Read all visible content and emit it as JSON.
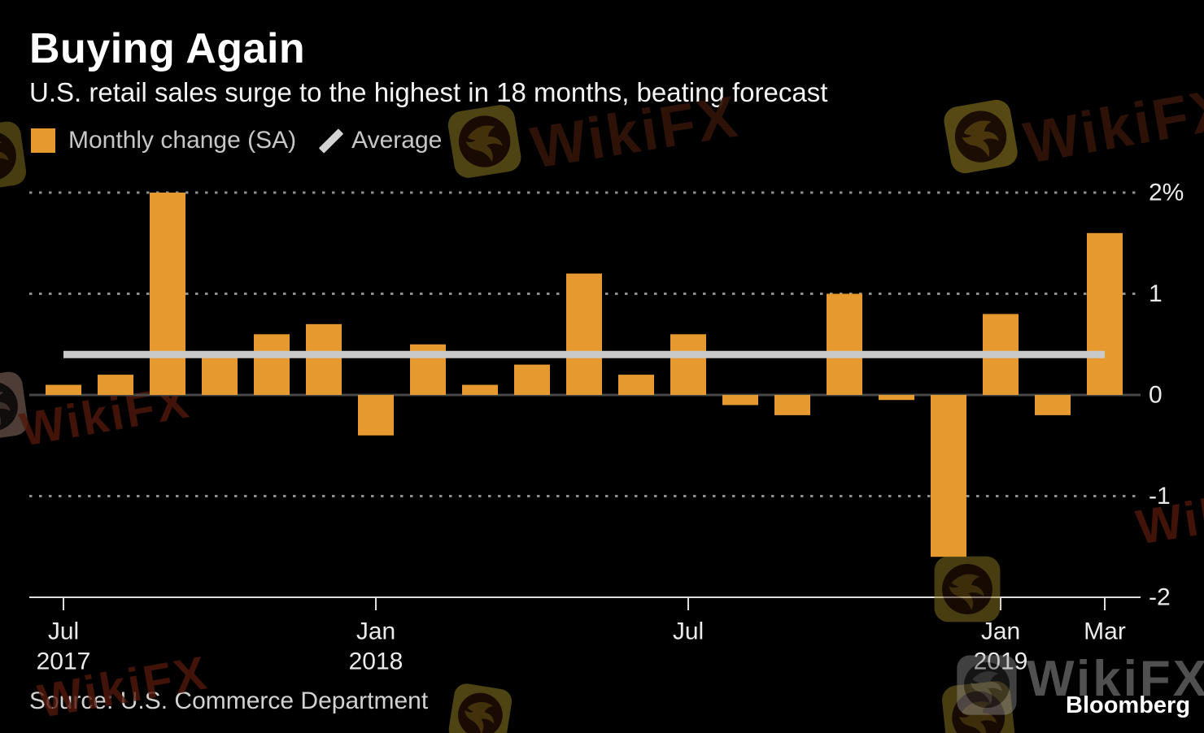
{
  "header": {
    "title": "Buying Again",
    "subtitle": "U.S. retail sales surge to the highest in 18 months, beating forecast"
  },
  "legend": {
    "bar_label": "Monthly change (SA)",
    "line_label": "Average",
    "bar_color": "#E6992E",
    "line_color": "#C9C9C9"
  },
  "chart_data": {
    "type": "bar",
    "title": "Buying Again",
    "categories": [
      "Jul 2017",
      "Aug 2017",
      "Sep 2017",
      "Oct 2017",
      "Nov 2017",
      "Dec 2017",
      "Jan 2018",
      "Feb 2018",
      "Mar 2018",
      "Apr 2018",
      "May 2018",
      "Jun 2018",
      "Jul 2018",
      "Aug 2018",
      "Sep 2018",
      "Oct 2018",
      "Nov 2018",
      "Dec 2018",
      "Jan 2019",
      "Feb 2019",
      "Mar 2019"
    ],
    "values": [
      0.1,
      0.2,
      2.0,
      0.4,
      0.6,
      0.7,
      -0.4,
      0.5,
      0.1,
      0.3,
      1.2,
      0.2,
      0.6,
      -0.1,
      -0.2,
      1.0,
      -0.05,
      -1.6,
      0.8,
      -0.2,
      1.6
    ],
    "series_name": "Monthly change (SA)",
    "average": 0.4,
    "average_name": "Average",
    "xlabel": "",
    "ylabel": "%",
    "ylim": [
      -2,
      2
    ],
    "grid": true,
    "legend_position": "top",
    "yticks": [
      {
        "value": 2,
        "label": "2%"
      },
      {
        "value": 1,
        "label": "1"
      },
      {
        "value": 0,
        "label": "0"
      },
      {
        "value": -1,
        "label": "-1"
      },
      {
        "value": -2,
        "label": "-2"
      }
    ],
    "xticks": [
      {
        "index": 0,
        "label": "Jul",
        "year": "2017"
      },
      {
        "index": 6,
        "label": "Jan",
        "year": "2018"
      },
      {
        "index": 12,
        "label": "Jul",
        "year": ""
      },
      {
        "index": 18,
        "label": "Jan",
        "year": "2019"
      },
      {
        "index": 20,
        "label": "Mar",
        "year": ""
      }
    ],
    "bar_color": "#E6992E",
    "average_color": "#C9C9C9"
  },
  "footer": {
    "source": "Source: U.S. Commerce Department",
    "brand": "Bloomberg"
  },
  "watermark": {
    "text": "WikiFX"
  }
}
